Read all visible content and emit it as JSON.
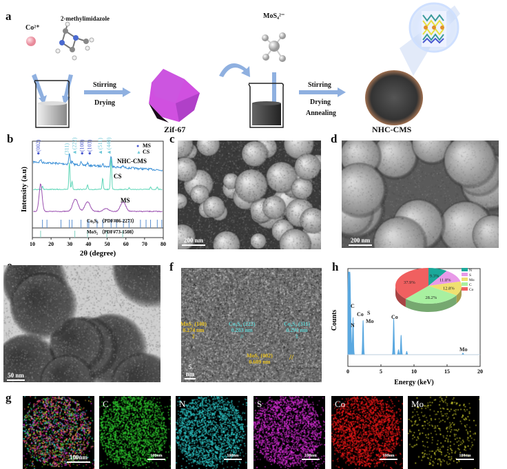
{
  "panel_labels": {
    "a": "a",
    "b": "b",
    "c": "c",
    "d": "d",
    "e": "e",
    "f": "f",
    "g": "g",
    "h": "h"
  },
  "scheme": {
    "co_label": "Co²⁺",
    "ligand_label": "2-methylimidazole",
    "step1": [
      "Stirring",
      "Drying"
    ],
    "zif_label": "Zif-67",
    "mos4_label": "MoS₄²⁻",
    "step2": [
      "Stirring",
      "Drying",
      "Annealing"
    ],
    "product_label": "NHC-CMS",
    "colors": {
      "arrow": "#8fb0e0",
      "zif": "#d050e0",
      "cobalt": "#f0a0b0"
    }
  },
  "sem": {
    "c_scale": "200 nm",
    "d_scale": "200 nm"
  },
  "tem": {
    "e_scale": "50 nm",
    "f_scale": "5 nm",
    "annotations": [
      {
        "plane": "MoS₂ (100)",
        "d": "0.274 nm",
        "color": "#e8c020"
      },
      {
        "plane": "Co₉S₈ (222)",
        "d": "0.283 nm",
        "color": "#60d0d0"
      },
      {
        "plane": "Co₉S₈ (311)",
        "d": "0.294 nm",
        "color": "#60d0d0"
      },
      {
        "plane": "MoS₂ (002)",
        "d": "0.609 nm",
        "color": "#e8c020"
      }
    ]
  },
  "mapping": {
    "panels": [
      {
        "element": "",
        "color": "#ff4060",
        "scale": "100nm"
      },
      {
        "element": "C",
        "color": "#30d030",
        "scale": "100nm"
      },
      {
        "element": "N",
        "color": "#30d0d0",
        "scale": "100nm"
      },
      {
        "element": "S",
        "color": "#e030e0",
        "scale": "100nm"
      },
      {
        "element": "Co",
        "color": "#ff1a1a",
        "scale": "100nm"
      },
      {
        "element": "Mo",
        "color": "#e0e030",
        "scale": "100nm"
      }
    ]
  },
  "chart_data": [
    {
      "type": "line",
      "panel": "b",
      "xlabel": "2θ (degree)",
      "ylabel": "Intensity (a.u)",
      "xlim": [
        10,
        80
      ],
      "xticks": [
        10,
        20,
        30,
        40,
        50,
        60,
        70,
        80
      ],
      "legend": [
        {
          "name": "MS",
          "marker": "●",
          "color": "#4a5ad0"
        },
        {
          "name": "CS",
          "marker": "▲",
          "color": "#70c8d8"
        }
      ],
      "legend_position": "top-right",
      "series": [
        {
          "name": "NHC-CMS",
          "color": "#3a8fd6",
          "peaks": [
            [
              14.4,
              0.15
            ],
            [
              29.8,
              0.55
            ],
            [
              31.2,
              0.15
            ],
            [
              36.0,
              0.12
            ],
            [
              39.5,
              0.12
            ],
            [
              47.6,
              0.15
            ],
            [
              52.1,
              0.6
            ],
            [
              58.5,
              0.08
            ]
          ]
        },
        {
          "name": "CS",
          "color": "#5fd6b8",
          "peaks": [
            [
              15.4,
              0.12
            ],
            [
              29.8,
              1.0
            ],
            [
              31.2,
              0.3
            ],
            [
              39.5,
              0.15
            ],
            [
              47.6,
              0.4
            ],
            [
              52.1,
              1.2
            ],
            [
              61.7,
              0.06
            ],
            [
              73.2,
              0.08
            ],
            [
              76.8,
              0.1
            ]
          ]
        },
        {
          "name": "MS",
          "color": "#9a4fb0",
          "peaks": [
            [
              14.4,
              1.0
            ],
            [
              33.0,
              0.45
            ],
            [
              39.5,
              0.35
            ],
            [
              49.5,
              0.1
            ],
            [
              58.5,
              0.35
            ]
          ]
        }
      ],
      "references": [
        {
          "name": "Co₉S₈ （PDF#86-2273）",
          "color": "#5a8fd0",
          "positions": [
            15.4,
            17.8,
            25.3,
            29.8,
            31.2,
            36.0,
            39.5,
            40.2,
            44.6,
            47.6,
            52.1,
            55.0,
            58.7,
            61.7,
            67.8,
            70.8,
            73.2,
            76.8,
            79.2
          ]
        },
        {
          "name": "MoS₂ （PDF#73-1508）",
          "color": "#7fd0c0",
          "positions": [
            14.4,
            32.7,
            39.5,
            49.8,
            58.3
          ]
        }
      ],
      "annotations": [
        {
          "text": "●(002)",
          "x": 14.4,
          "color": "#4a5ad0"
        },
        {
          "text": "(311)",
          "x": 29.8,
          "color": "#70c8d8"
        },
        {
          "text": "▲(222)",
          "x": 31.2,
          "color": "#70c8d8"
        },
        {
          "text": "●(100)",
          "x": 36.0,
          "color": "#4a5ad0"
        },
        {
          "text": "●(103)",
          "x": 39.5,
          "color": "#4a5ad0"
        },
        {
          "text": "▲(511)",
          "x": 47.6,
          "color": "#70c8d8"
        },
        {
          "text": "▲(440)",
          "x": 52.1,
          "color": "#70c8d8"
        }
      ]
    },
    {
      "type": "line",
      "panel": "h",
      "xlabel": "Energy (keV)",
      "ylabel": "Counts",
      "xlim": [
        0,
        20
      ],
      "xticks": [
        0,
        5,
        10,
        15,
        20
      ],
      "color": "#5aa8e0",
      "peaks": [
        [
          0.1,
          1.0
        ],
        [
          0.28,
          0.6
        ],
        [
          0.39,
          0.3
        ],
        [
          0.78,
          0.45
        ],
        [
          2.3,
          0.42
        ],
        [
          6.93,
          0.44
        ],
        [
          7.65,
          0.06
        ],
        [
          8.05,
          0.24
        ],
        [
          8.9,
          0.04
        ],
        [
          17.4,
          0.02
        ]
      ],
      "peak_labels": [
        {
          "text": "C",
          "x": 0.28
        },
        {
          "text": "N",
          "x": 0.39
        },
        {
          "text": "Co",
          "x": 0.78
        },
        {
          "text": "S",
          "x": 2.3
        },
        {
          "text": "Mo",
          "x": 2.3
        },
        {
          "text": "Co",
          "x": 6.93
        },
        {
          "text": "Mo",
          "x": 17.4
        }
      ]
    },
    {
      "type": "pie",
      "panel": "h-inset",
      "categories": [
        "N",
        "S",
        "Mo",
        "C",
        "Co"
      ],
      "values": [
        9.3,
        11.8,
        12.8,
        28.2,
        37.9
      ],
      "labels": [
        "9.3%",
        "11.8%",
        "12.8%",
        "28.2%",
        "37.9%"
      ],
      "colors": [
        "#1aa89a",
        "#e89ae8",
        "#f0e070",
        "#a8f0a0",
        "#f06060"
      ],
      "legend_position": "top-right"
    }
  ]
}
